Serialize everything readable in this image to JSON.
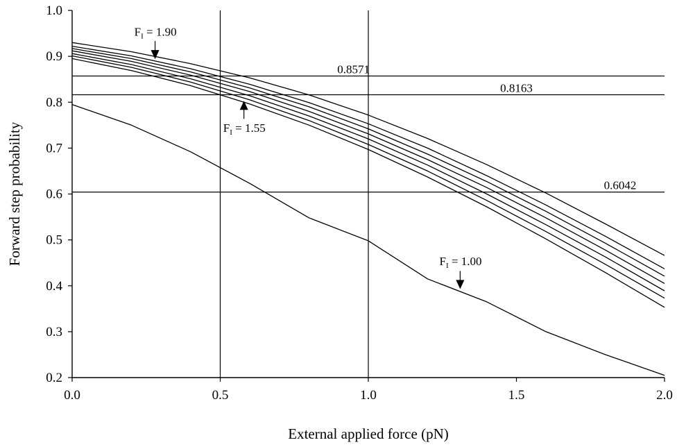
{
  "chart_data": {
    "type": "line",
    "title": "",
    "xlabel": "External applied force (pN)",
    "ylabel": "Forward step probability",
    "xlim": [
      0.0,
      2.0
    ],
    "ylim": [
      0.2,
      1.0
    ],
    "x_ticks": [
      0.0,
      0.5,
      1.0,
      1.5,
      2.0
    ],
    "x_tick_labels": [
      "0.0",
      "0.5",
      "1.0",
      "1.5",
      "2.0"
    ],
    "y_ticks": [
      0.2,
      0.3,
      0.4,
      0.5,
      0.6,
      0.7,
      0.8,
      0.9,
      1.0
    ],
    "y_tick_labels": [
      "0.2",
      "0.3",
      "0.4",
      "0.5",
      "0.6",
      "0.7",
      "0.8",
      "0.9",
      "1.0"
    ],
    "vertical_gridlines": [
      0.5,
      1.0
    ],
    "reference_lines": [
      {
        "y": 0.8571,
        "label": "0.8571",
        "label_x": 0.95
      },
      {
        "y": 0.8163,
        "label": "0.8163",
        "label_x": 1.5
      },
      {
        "y": 0.6042,
        "label": "0.6042",
        "label_x": 1.85
      }
    ],
    "x": [
      0.0,
      0.2,
      0.4,
      0.6,
      0.8,
      1.0,
      1.2,
      1.4,
      1.6,
      1.8,
      2.0
    ],
    "series": [
      {
        "values": [
          0.93,
          0.91,
          0.884,
          0.853,
          0.816,
          0.772,
          0.721,
          0.664,
          0.602,
          0.535,
          0.466
        ]
      },
      {
        "values": [
          0.922,
          0.901,
          0.873,
          0.839,
          0.799,
          0.753,
          0.7,
          0.64,
          0.576,
          0.508,
          0.437
        ]
      },
      {
        "values": [
          0.917,
          0.895,
          0.866,
          0.831,
          0.79,
          0.742,
          0.687,
          0.627,
          0.562,
          0.493,
          0.421
        ]
      },
      {
        "values": [
          0.912,
          0.889,
          0.859,
          0.823,
          0.78,
          0.731,
          0.675,
          0.614,
          0.548,
          0.478,
          0.405
        ]
      },
      {
        "values": [
          0.906,
          0.882,
          0.851,
          0.814,
          0.77,
          0.72,
          0.663,
          0.6,
          0.533,
          0.463,
          0.389
        ]
      },
      {
        "values": [
          0.901,
          0.876,
          0.844,
          0.805,
          0.76,
          0.708,
          0.65,
          0.586,
          0.518,
          0.447,
          0.373
        ]
      },
      {
        "values": [
          0.895,
          0.869,
          0.836,
          0.796,
          0.75,
          0.697,
          0.637,
          0.572,
          0.502,
          0.429,
          0.353
        ]
      },
      {
        "values": [
          0.795,
          0.75,
          0.692,
          0.623,
          0.548,
          0.498,
          0.415,
          0.365,
          0.3,
          0.25,
          0.205
        ]
      }
    ],
    "annotations": [
      {
        "text_prefix": "F",
        "text_sub": "I",
        "text_rest": " = 1.90",
        "x": 0.28,
        "y": 0.894,
        "direction": "down",
        "text_x": 0.21,
        "text_y": 0.945
      },
      {
        "text_prefix": "F",
        "text_sub": "I",
        "text_rest": " = 1.55",
        "x": 0.58,
        "y": 0.803,
        "direction": "up",
        "text_x": 0.51,
        "text_y": 0.735
      },
      {
        "text_prefix": "F",
        "text_sub": "I",
        "text_rest": " = 1.00",
        "x": 1.31,
        "y": 0.393,
        "direction": "down",
        "text_x": 1.24,
        "text_y": 0.445
      }
    ]
  }
}
